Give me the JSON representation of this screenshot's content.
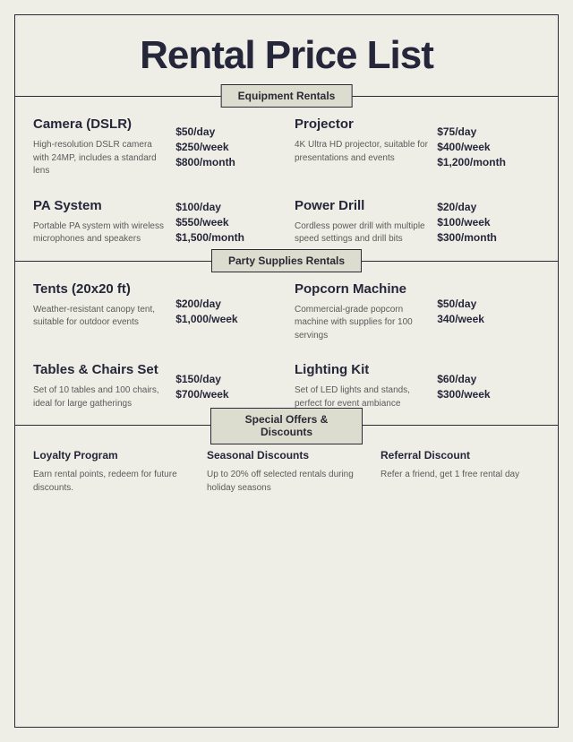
{
  "title": "Rental Price List",
  "sections": [
    {
      "label": "Equipment Rentals",
      "items": [
        {
          "name": "Camera (DSLR)",
          "desc": "High-resolution DSLR camera with 24MP, includes a standard lens",
          "prices": [
            "$50/day",
            "$250/week",
            "$800/month"
          ]
        },
        {
          "name": "Projector",
          "desc": "4K Ultra HD projector, suitable for presentations and events",
          "prices": [
            "$75/day",
            "$400/week",
            "$1,200/month"
          ]
        },
        {
          "name": "PA System",
          "desc": "Portable PA system with wireless microphones and speakers",
          "prices": [
            "$100/day",
            "$550/week",
            "$1,500/month"
          ]
        },
        {
          "name": "Power Drill",
          "desc": "Cordless power drill with multiple speed settings and drill bits",
          "prices": [
            "$20/day",
            "$100/week",
            "$300/month"
          ]
        }
      ]
    },
    {
      "label": "Party Supplies Rentals",
      "items": [
        {
          "name": "Tents (20x20 ft)",
          "desc": "Weather-resistant canopy tent, suitable for outdoor events",
          "prices": [
            "$200/day",
            "$1,000/week"
          ]
        },
        {
          "name": "Popcorn Machine",
          "desc": "Commercial-grade popcorn machine with supplies for 100 servings",
          "prices": [
            "$50/day",
            "340/week"
          ]
        },
        {
          "name": "Tables & Chairs Set",
          "desc": "Set of 10 tables and 100 chairs, ideal for large gatherings",
          "prices": [
            "$150/day",
            "$700/week"
          ]
        },
        {
          "name": "Lighting Kit",
          "desc": "Set of LED lights and stands, perfect for event ambiance",
          "prices": [
            "$60/day",
            "$300/week"
          ]
        }
      ]
    }
  ],
  "offers_label": "Special Offers & Discounts",
  "offers": [
    {
      "name": "Loyalty Program",
      "desc": "Earn rental points, redeem for future discounts."
    },
    {
      "name": "Seasonal Discounts",
      "desc": "Up to 20% off selected rentals during holiday seasons"
    },
    {
      "name": "Referral Discount",
      "desc": "Refer a friend, get 1 free rental day"
    }
  ],
  "colors": {
    "background": "#eeeee6",
    "text_dark": "#26263a",
    "text_muted": "#5a5a5a",
    "border": "#2a2a35",
    "label_bg": "#dcdccf"
  },
  "typography": {
    "title_fontsize": 44,
    "title_weight": 900,
    "item_name_fontsize": 15,
    "item_name_weight": 800,
    "desc_fontsize": 10,
    "price_fontsize": 12,
    "price_weight": 800,
    "section_label_fontsize": 12
  }
}
